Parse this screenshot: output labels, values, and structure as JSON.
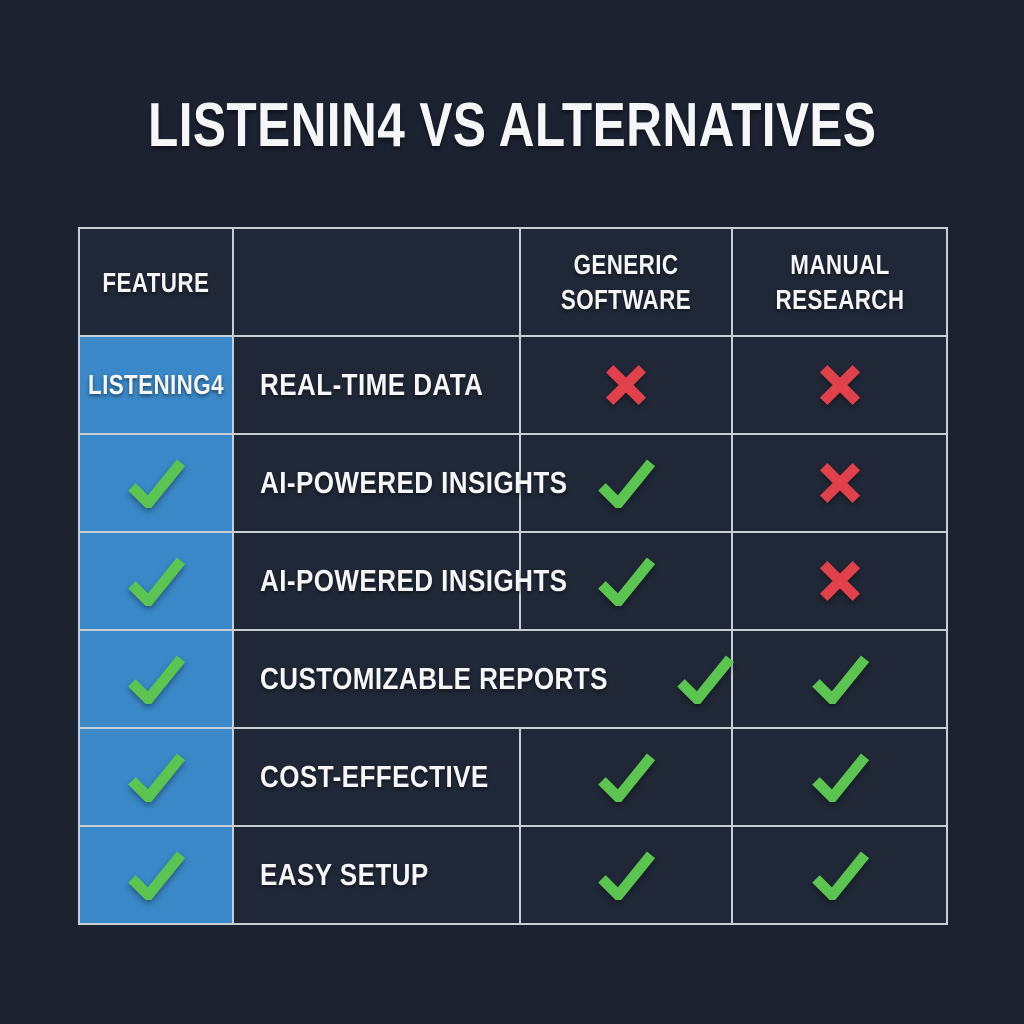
{
  "title": "LISTENIN4 VS ALTERNATIVES",
  "colors": {
    "background": "#1d2231",
    "cell_background": "#202837",
    "grid_border": "#c9cdd5",
    "brand_blue": "#3a88c8",
    "check_green": "#5cc551",
    "cross_red": "#e0414b",
    "text_white": "#f4f6f8"
  },
  "chart_data": {
    "type": "table",
    "title": "LISTENIN4 VS ALTERNATIVES",
    "header": {
      "feature": "FEATURE",
      "product": "",
      "generic": "GENERIC SOFTWARE",
      "manual": "MANUAL RESEARCH"
    },
    "product_label": "LISTENING4",
    "rows": [
      {
        "feature": "REAL-TIME DATA",
        "product": "label",
        "generic": "cross",
        "manual": "cross",
        "merged": false
      },
      {
        "feature": "AI-POWERED INSIGHTS",
        "product": "check",
        "generic": "check",
        "manual": "cross",
        "merged": false
      },
      {
        "feature": "AI-POWERED INSIGHTS",
        "product": "check",
        "generic": "check",
        "manual": "cross",
        "merged": false
      },
      {
        "feature": "CUSTOMIZABLE REPORTS",
        "product": "check",
        "generic": "check",
        "manual": "check",
        "merged": true
      },
      {
        "feature": "COST-EFFECTIVE",
        "product": "check",
        "generic": "check",
        "manual": "check",
        "merged": false
      },
      {
        "feature": "EASY SETUP",
        "product": "check",
        "generic": "check",
        "manual": "check",
        "merged": false
      }
    ],
    "mark_legend": {
      "check": "included",
      "cross": "not included"
    }
  }
}
